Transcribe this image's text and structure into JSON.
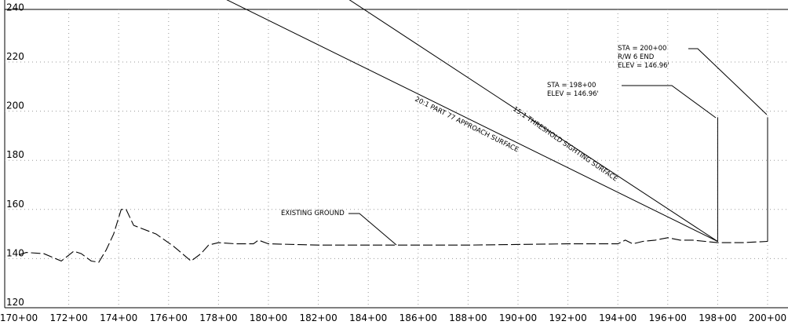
{
  "chart_data": {
    "type": "line",
    "title": "",
    "xlabel": "",
    "ylabel": "",
    "xlim": [
      170,
      200
    ],
    "ylim": [
      120,
      240
    ],
    "x_ticks": [
      170,
      172,
      174,
      176,
      178,
      180,
      182,
      184,
      186,
      188,
      190,
      192,
      194,
      196,
      198,
      200
    ],
    "x_tick_labels": [
      "170+00",
      "172+00",
      "174+00",
      "176+00",
      "178+00",
      "180+00",
      "182+00",
      "184+00",
      "186+00",
      "188+00",
      "190+00",
      "192+00",
      "194+00",
      "196+00",
      "198+00",
      "200+00"
    ],
    "y_ticks": [
      120,
      140,
      160,
      180,
      200,
      220,
      240
    ],
    "y_tick_labels": [
      "120",
      "140",
      "160",
      "180",
      "200",
      "220",
      "240"
    ],
    "grid": true,
    "series": [
      {
        "name": "EXISTING GROUND",
        "style": "dashed",
        "x": [
          170.0,
          170.3,
          171.0,
          171.7,
          172.2,
          172.5,
          172.9,
          173.2,
          173.5,
          173.8,
          174.1,
          174.3,
          174.6,
          175.5,
          176.2,
          176.9,
          177.3,
          177.6,
          178.0,
          178.7,
          179.4,
          179.6,
          180.0,
          182.0,
          184.0,
          185.0,
          188.0,
          192.0,
          194.0,
          194.3,
          194.6,
          195.0,
          195.5,
          196.0,
          196.5,
          197.0,
          198.0,
          199.0,
          200.0
        ],
        "y": [
          141.5,
          142.5,
          142.0,
          139.0,
          143.0,
          142.0,
          139.0,
          138.5,
          143.5,
          150.0,
          160.0,
          160.0,
          153.5,
          150.0,
          145.0,
          139.0,
          142.0,
          145.5,
          146.5,
          146.0,
          146.0,
          147.5,
          146.0,
          145.5,
          145.5,
          145.5,
          145.5,
          146.0,
          146.0,
          147.5,
          146.0,
          147.0,
          147.5,
          148.5,
          147.5,
          147.5,
          146.5,
          146.5,
          147.0
        ]
      },
      {
        "name": "20:1 PART 77 APPROACH SURFACE",
        "x": [
          174.0,
          198.0
        ],
        "y": [
          267.0,
          146.96
        ]
      },
      {
        "name": "15:1 THRESHOLD SIGHTING SURFACE",
        "x": [
          179.0,
          198.0
        ],
        "y": [
          273.6,
          146.96
        ]
      }
    ],
    "verticals": [
      {
        "x": 198.0,
        "y_from": 146.96,
        "y_to": 197.5
      },
      {
        "x": 200.0,
        "y_from": 146.96,
        "y_to": 197.5
      }
    ],
    "annotations": [
      {
        "text": "EXISTING GROUND",
        "x": 184.8,
        "y": 146.0
      },
      {
        "lines": [
          "STA = 198+00",
          "ELEV = 146.96'"
        ],
        "x": 198.0,
        "y": 197.5
      },
      {
        "lines": [
          "STA = 200+00",
          "R/W 6 END",
          "ELEV = 146.96'"
        ],
        "x": 200.0,
        "y": 197.5
      }
    ]
  }
}
